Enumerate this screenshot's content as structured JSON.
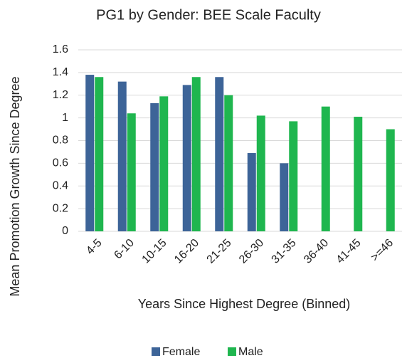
{
  "chart_data": {
    "type": "bar",
    "title": "PG1 by Gender: BEE Scale Faculty",
    "x_label": "Years Since Highest Degree (Binned)",
    "y_label": "Mean Promotion Growth Since Degree",
    "categories": [
      "4-5",
      "6-10",
      "10-15",
      "16-20",
      "21-25",
      "26-30",
      "31-35",
      "36-40",
      "41-45",
      ">=46"
    ],
    "series": [
      {
        "name": "Female",
        "color": "#3d6498",
        "values": [
          1.38,
          1.32,
          1.13,
          1.29,
          1.36,
          0.69,
          0.6,
          null,
          null,
          null
        ]
      },
      {
        "name": "Male",
        "color": "#1fb64f",
        "values": [
          1.36,
          1.04,
          1.19,
          1.36,
          1.2,
          1.02,
          0.97,
          1.1,
          1.01,
          0.9
        ]
      }
    ],
    "ylim": [
      0,
      1.6
    ],
    "yticks": [
      0,
      0.2,
      0.4,
      0.6,
      0.8,
      1,
      1.2,
      1.4,
      1.6
    ],
    "grid": true,
    "legend": "bottom"
  }
}
